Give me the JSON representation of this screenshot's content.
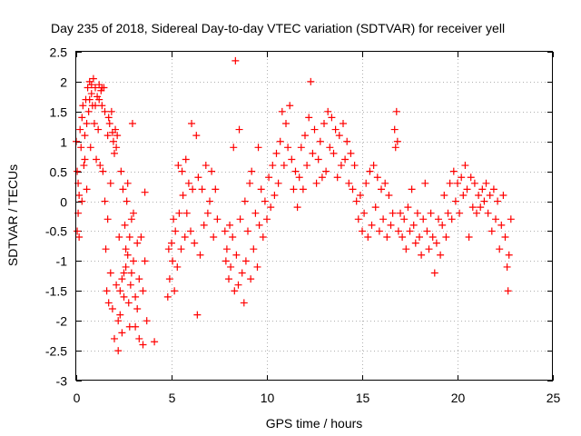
{
  "chart_data": {
    "type": "scatter",
    "title": "Day 235 of 2018, Sidereal Day-to-day VTEC variation (SDTVAR) for receiver yell",
    "xlabel": "GPS time / hours",
    "ylabel": "SDTVAR / TECUs",
    "xlim": [
      0,
      25
    ],
    "ylim": [
      -3,
      2.5
    ],
    "xticks": [
      0,
      5,
      10,
      15,
      20,
      25
    ],
    "yticks": [
      -3,
      -2.5,
      -2,
      -1.5,
      -1,
      -0.5,
      0,
      0.5,
      1,
      1.5,
      2,
      2.5
    ],
    "grid": true,
    "marker": "+",
    "series": [
      {
        "name": "SDTVAR",
        "color": "#ff0000",
        "points": [
          [
            0.0,
            1.0
          ],
          [
            0.05,
            0.5
          ],
          [
            0.1,
            -0.2
          ],
          [
            0.15,
            0.1
          ],
          [
            0.2,
            1.2
          ],
          [
            0.25,
            0.9
          ],
          [
            0.3,
            1.4
          ],
          [
            0.35,
            1.6
          ],
          [
            0.4,
            0.6
          ],
          [
            0.45,
            1.1
          ],
          [
            0.5,
            1.7
          ],
          [
            0.55,
            0.2
          ],
          [
            0.6,
            1.9
          ],
          [
            0.65,
            1.5
          ],
          [
            0.7,
            2.0
          ],
          [
            0.75,
            0.9
          ],
          [
            0.8,
            1.8
          ],
          [
            0.85,
            1.6
          ],
          [
            0.9,
            2.05
          ],
          [
            0.95,
            1.3
          ],
          [
            1.0,
            1.9
          ],
          [
            1.05,
            0.7
          ],
          [
            1.1,
            1.75
          ],
          [
            1.15,
            1.2
          ],
          [
            1.2,
            1.95
          ],
          [
            1.25,
            0.6
          ],
          [
            1.3,
            1.85
          ],
          [
            1.35,
            1.6
          ],
          [
            1.4,
            0.5
          ],
          [
            1.45,
            1.9
          ],
          [
            1.5,
            1.5
          ],
          [
            1.55,
            -0.8
          ],
          [
            1.6,
            -1.5
          ],
          [
            1.65,
            1.1
          ],
          [
            1.7,
            -1.7
          ],
          [
            1.75,
            1.3
          ],
          [
            1.8,
            -1.2
          ],
          [
            1.85,
            1.5
          ],
          [
            1.9,
            -1.8
          ],
          [
            1.95,
            1.0
          ],
          [
            2.0,
            -2.3
          ],
          [
            2.05,
            1.2
          ],
          [
            2.1,
            -1.4
          ],
          [
            2.15,
            1.1
          ],
          [
            2.2,
            -2.5
          ],
          [
            2.25,
            -0.6
          ],
          [
            2.3,
            -1.9
          ],
          [
            2.35,
            0.5
          ],
          [
            2.4,
            -1.3
          ],
          [
            2.45,
            0.2
          ],
          [
            2.5,
            -1.6
          ],
          [
            2.55,
            -0.4
          ],
          [
            2.6,
            -1.1
          ],
          [
            2.65,
            0.0
          ],
          [
            2.7,
            -0.9
          ],
          [
            2.75,
            -1.7
          ],
          [
            2.8,
            -2.1
          ],
          [
            2.85,
            -1.4
          ],
          [
            2.9,
            -0.3
          ],
          [
            2.95,
            1.3
          ],
          [
            3.0,
            -1.0
          ],
          [
            3.1,
            -2.1
          ],
          [
            3.2,
            -1.8
          ],
          [
            3.3,
            -2.3
          ],
          [
            3.4,
            -0.6
          ],
          [
            3.5,
            -1.5
          ],
          [
            3.6,
            0.15
          ],
          [
            3.7,
            -2.0
          ],
          [
            4.1,
            -2.35
          ],
          [
            0.05,
            -0.5
          ],
          [
            0.1,
            0.3
          ],
          [
            0.15,
            -0.6
          ],
          [
            0.3,
            0.0
          ],
          [
            0.45,
            0.7
          ],
          [
            0.55,
            1.3
          ],
          [
            0.7,
            1.7
          ],
          [
            0.8,
            1.95
          ],
          [
            1.0,
            1.6
          ],
          [
            1.2,
            1.7
          ],
          [
            1.35,
            1.9
          ],
          [
            1.5,
            0.0
          ],
          [
            1.65,
            -0.3
          ],
          [
            1.7,
            1.4
          ],
          [
            1.8,
            0.3
          ],
          [
            1.9,
            1.15
          ],
          [
            2.0,
            0.8
          ],
          [
            2.1,
            0.9
          ],
          [
            2.2,
            -2.0
          ],
          [
            2.3,
            -1.5
          ],
          [
            2.4,
            -2.2
          ],
          [
            2.5,
            -1.2
          ],
          [
            2.6,
            -0.8
          ],
          [
            2.7,
            0.3
          ],
          [
            2.8,
            -0.6
          ],
          [
            2.9,
            -1.2
          ],
          [
            3.0,
            -0.2
          ],
          [
            3.1,
            -1.6
          ],
          [
            3.2,
            -0.7
          ],
          [
            3.3,
            -1.3
          ],
          [
            3.5,
            -2.4
          ],
          [
            3.6,
            -1.0
          ],
          [
            4.8,
            -1.6
          ],
          [
            4.85,
            -0.8
          ],
          [
            4.9,
            -1.3
          ],
          [
            5.0,
            -0.7
          ],
          [
            5.05,
            -1.0
          ],
          [
            5.1,
            -0.3
          ],
          [
            5.15,
            -1.5
          ],
          [
            5.2,
            -0.5
          ],
          [
            5.3,
            -1.1
          ],
          [
            5.35,
            0.6
          ],
          [
            5.4,
            -0.2
          ],
          [
            5.5,
            -0.8
          ],
          [
            5.55,
            0.5
          ],
          [
            5.6,
            0.1
          ],
          [
            5.7,
            -0.6
          ],
          [
            5.75,
            0.7
          ],
          [
            5.8,
            -0.2
          ],
          [
            5.9,
            0.3
          ],
          [
            6.0,
            -0.5
          ],
          [
            6.05,
            1.3
          ],
          [
            6.1,
            0.2
          ],
          [
            6.2,
            -0.7
          ],
          [
            6.3,
            1.1
          ],
          [
            6.35,
            -1.9
          ],
          [
            6.4,
            0.4
          ],
          [
            6.5,
            -0.9
          ],
          [
            6.6,
            0.2
          ],
          [
            6.7,
            -0.4
          ],
          [
            6.8,
            0.6
          ],
          [
            6.9,
            -0.2
          ],
          [
            7.0,
            0.0
          ],
          [
            7.1,
            0.5
          ],
          [
            7.2,
            -0.6
          ],
          [
            7.3,
            0.2
          ],
          [
            7.4,
            -0.3
          ],
          [
            7.8,
            -0.5
          ],
          [
            7.85,
            -1.0
          ],
          [
            7.9,
            -0.8
          ],
          [
            8.0,
            -1.3
          ],
          [
            8.05,
            -0.4
          ],
          [
            8.1,
            -1.1
          ],
          [
            8.2,
            -0.6
          ],
          [
            8.25,
            0.9
          ],
          [
            8.3,
            -1.5
          ],
          [
            8.35,
            2.35
          ],
          [
            8.4,
            -0.9
          ],
          [
            8.5,
            -1.4
          ],
          [
            8.55,
            1.2
          ],
          [
            8.6,
            -0.3
          ],
          [
            8.7,
            -1.2
          ],
          [
            8.8,
            -1.7
          ],
          [
            8.85,
            0.0
          ],
          [
            8.9,
            -1.0
          ],
          [
            9.0,
            -0.5
          ],
          [
            9.1,
            0.3
          ],
          [
            9.15,
            -1.3
          ],
          [
            9.2,
            0.5
          ],
          [
            9.3,
            -0.8
          ],
          [
            9.4,
            -0.2
          ],
          [
            9.5,
            -1.1
          ],
          [
            9.55,
            0.9
          ],
          [
            9.6,
            -0.4
          ],
          [
            9.7,
            0.2
          ],
          [
            9.8,
            -0.6
          ],
          [
            9.9,
            0.0
          ],
          [
            10.0,
            -0.3
          ],
          [
            10.1,
            0.4
          ],
          [
            10.2,
            -0.1
          ],
          [
            10.3,
            0.6
          ],
          [
            10.4,
            0.1
          ],
          [
            10.5,
            0.8
          ],
          [
            10.6,
            0.3
          ],
          [
            10.7,
            1.0
          ],
          [
            10.8,
            1.5
          ],
          [
            10.9,
            0.6
          ],
          [
            11.0,
            1.3
          ],
          [
            11.1,
            0.9
          ],
          [
            11.2,
            1.6
          ],
          [
            11.3,
            0.7
          ],
          [
            11.4,
            0.2
          ],
          [
            11.5,
            0.5
          ],
          [
            11.6,
            -0.1
          ],
          [
            11.7,
            0.4
          ],
          [
            11.8,
            0.9
          ],
          [
            11.9,
            0.2
          ],
          [
            12.0,
            1.1
          ],
          [
            12.1,
            0.6
          ],
          [
            12.2,
            1.4
          ],
          [
            12.3,
            2.0
          ],
          [
            12.4,
            0.8
          ],
          [
            12.5,
            1.2
          ],
          [
            12.6,
            0.3
          ],
          [
            12.7,
            0.7
          ],
          [
            12.8,
            1.0
          ],
          [
            12.9,
            0.4
          ],
          [
            13.0,
            1.3
          ],
          [
            13.1,
            0.5
          ],
          [
            13.2,
            1.5
          ],
          [
            13.3,
            0.9
          ],
          [
            13.4,
            1.4
          ],
          [
            13.5,
            0.8
          ],
          [
            13.6,
            1.2
          ],
          [
            13.7,
            0.4
          ],
          [
            13.8,
            1.1
          ],
          [
            13.9,
            0.6
          ],
          [
            14.0,
            1.3
          ],
          [
            14.1,
            0.7
          ],
          [
            14.2,
            1.0
          ],
          [
            14.3,
            0.3
          ],
          [
            14.4,
            0.8
          ],
          [
            14.5,
            0.2
          ],
          [
            14.6,
            0.6
          ],
          [
            14.7,
            0.0
          ],
          [
            14.8,
            -0.3
          ],
          [
            14.9,
            0.1
          ],
          [
            15.0,
            -0.5
          ],
          [
            15.1,
            -0.2
          ],
          [
            15.2,
            0.3
          ],
          [
            15.3,
            -0.6
          ],
          [
            15.4,
            0.5
          ],
          [
            15.5,
            -0.4
          ],
          [
            15.6,
            0.6
          ],
          [
            15.7,
            -0.1
          ],
          [
            15.8,
            0.4
          ],
          [
            15.9,
            -0.5
          ],
          [
            16.0,
            0.2
          ],
          [
            16.1,
            -0.3
          ],
          [
            16.2,
            0.3
          ],
          [
            16.3,
            -0.6
          ],
          [
            16.4,
            0.1
          ],
          [
            16.5,
            -0.4
          ],
          [
            16.6,
            -0.2
          ],
          [
            16.7,
            1.2
          ],
          [
            16.75,
            0.9
          ],
          [
            16.8,
            1.5
          ],
          [
            16.85,
            1.0
          ],
          [
            16.9,
            -0.5
          ],
          [
            17.0,
            -0.2
          ],
          [
            17.1,
            -0.6
          ],
          [
            17.2,
            -0.3
          ],
          [
            17.3,
            -0.8
          ],
          [
            17.4,
            -0.1
          ],
          [
            17.5,
            -0.5
          ],
          [
            17.6,
            0.2
          ],
          [
            17.7,
            -0.4
          ],
          [
            17.8,
            -0.7
          ],
          [
            17.9,
            -0.2
          ],
          [
            18.0,
            -0.6
          ],
          [
            18.1,
            -0.9
          ],
          [
            18.2,
            -0.3
          ],
          [
            18.3,
            0.3
          ],
          [
            18.4,
            -0.5
          ],
          [
            18.5,
            -0.8
          ],
          [
            18.6,
            -0.2
          ],
          [
            18.7,
            -0.6
          ],
          [
            18.8,
            -1.2
          ],
          [
            18.9,
            -0.7
          ],
          [
            19.0,
            -0.3
          ],
          [
            19.1,
            -0.9
          ],
          [
            19.2,
            -0.4
          ],
          [
            19.3,
            0.1
          ],
          [
            19.4,
            -0.6
          ],
          [
            19.5,
            -0.2
          ],
          [
            19.6,
            0.3
          ],
          [
            19.7,
            -0.3
          ],
          [
            19.8,
            0.5
          ],
          [
            19.9,
            0.0
          ],
          [
            20.0,
            0.3
          ],
          [
            20.1,
            -0.2
          ],
          [
            20.2,
            0.4
          ],
          [
            20.3,
            0.1
          ],
          [
            20.4,
            0.6
          ],
          [
            20.5,
            0.2
          ],
          [
            20.6,
            -0.6
          ],
          [
            20.7,
            0.4
          ],
          [
            20.8,
            -0.1
          ],
          [
            20.9,
            0.3
          ],
          [
            21.0,
            -0.2
          ],
          [
            21.1,
            0.1
          ],
          [
            21.2,
            -0.1
          ],
          [
            21.3,
            0.2
          ],
          [
            21.4,
            0.0
          ],
          [
            21.5,
            0.3
          ],
          [
            21.6,
            -0.2
          ],
          [
            21.7,
            0.1
          ],
          [
            21.8,
            -0.5
          ],
          [
            21.9,
            0.2
          ],
          [
            22.0,
            -0.3
          ],
          [
            22.1,
            0.0
          ],
          [
            22.2,
            -0.8
          ],
          [
            22.3,
            -0.4
          ],
          [
            22.4,
            0.1
          ],
          [
            22.5,
            -0.6
          ],
          [
            22.6,
            -1.1
          ],
          [
            22.65,
            -1.5
          ],
          [
            22.7,
            -0.9
          ],
          [
            22.8,
            -0.3
          ]
        ]
      }
    ]
  }
}
